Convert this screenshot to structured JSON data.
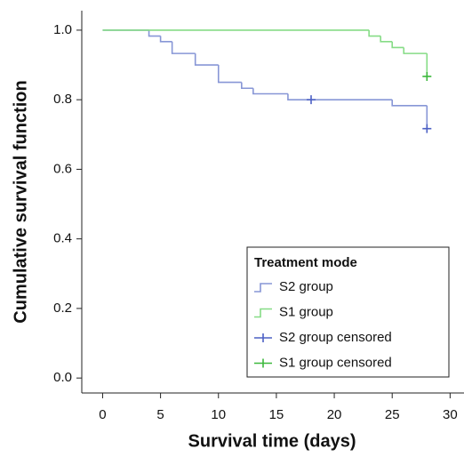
{
  "chart_data": {
    "type": "step",
    "xlabel": "Survival time (days)",
    "ylabel": "Cumulative survival function",
    "xlim": [
      -1.8,
      31.2
    ],
    "ylim": [
      -0.043,
      1.056
    ],
    "xticks": [
      0,
      5,
      10,
      15,
      20,
      25,
      30
    ],
    "yticks": [
      {
        "value": 0,
        "label": "0.0"
      },
      0.2,
      0.4,
      0.6,
      0.8,
      {
        "value": 1,
        "label": "1.0"
      }
    ],
    "legend_title": "Treatment mode",
    "legend_loc": "lower right",
    "series": [
      {
        "name": "S2 group",
        "color": "#8796d6",
        "drawstyle": "steps-post",
        "x": [
          0,
          4,
          5,
          6,
          8,
          10,
          12,
          13,
          16,
          25,
          28
        ],
        "values": [
          1.0,
          0.983,
          0.967,
          0.933,
          0.9,
          0.85,
          0.833,
          0.817,
          0.8,
          0.783,
          0.717
        ]
      },
      {
        "name": "S1 group",
        "color": "#86dc86",
        "drawstyle": "steps-post",
        "x": [
          0,
          23,
          24,
          25,
          26,
          28
        ],
        "values": [
          1.0,
          0.983,
          0.967,
          0.95,
          0.933,
          0.867
        ]
      },
      {
        "name": "S2 group censored",
        "color": "#4c60c4",
        "marker": "plus",
        "x": [
          18,
          28
        ],
        "values": [
          0.8,
          0.717
        ]
      },
      {
        "name": "S1 group censored",
        "color": "#3cb83c",
        "marker": "plus",
        "x": [
          28
        ],
        "values": [
          0.867
        ]
      }
    ]
  }
}
